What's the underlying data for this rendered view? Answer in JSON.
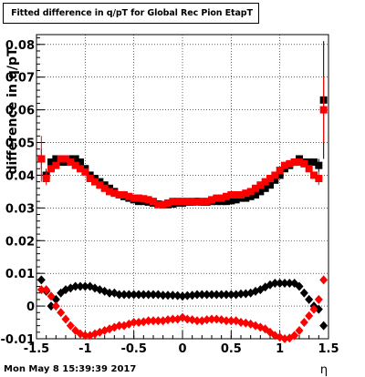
{
  "chart_data": {
    "type": "scatter",
    "title": "Fitted difference in q/pT for Global Rec Pion EtapT",
    "xlabel": "η",
    "ylabel": "difference in q/pT",
    "xlim": [
      -1.5,
      1.5
    ],
    "ylim": [
      -0.01,
      0.083
    ],
    "x_ticks": [
      "-1.5",
      "-1",
      "-0.5",
      "0",
      "0.5",
      "1",
      "1.5"
    ],
    "y_ticks": [
      "-0.01",
      "0",
      "0.01",
      "0.02",
      "0.03",
      "0.04",
      "0.05",
      "0.06",
      "0.07",
      "0.08"
    ],
    "grid": true,
    "timestamp": "Mon May  8 15:39:39 2017",
    "colors": {
      "black": "#000000",
      "red": "#ff0000"
    },
    "x": [
      -1.45,
      -1.4,
      -1.35,
      -1.3,
      -1.25,
      -1.2,
      -1.15,
      -1.1,
      -1.05,
      -1.0,
      -0.95,
      -0.9,
      -0.85,
      -0.8,
      -0.75,
      -0.7,
      -0.65,
      -0.6,
      -0.55,
      -0.5,
      -0.45,
      -0.4,
      -0.35,
      -0.3,
      -0.25,
      -0.2,
      -0.15,
      -0.1,
      -0.05,
      0.0,
      0.05,
      0.1,
      0.15,
      0.2,
      0.25,
      0.3,
      0.35,
      0.4,
      0.45,
      0.5,
      0.55,
      0.6,
      0.65,
      0.7,
      0.75,
      0.8,
      0.85,
      0.9,
      0.95,
      1.0,
      1.05,
      1.1,
      1.15,
      1.2,
      1.25,
      1.3,
      1.35,
      1.4,
      1.45
    ],
    "series": [
      {
        "marker": "square",
        "color": "#000000",
        "values": [
          0.045,
          0.04,
          0.044,
          0.045,
          0.044,
          0.044,
          0.045,
          0.045,
          0.044,
          0.042,
          0.04,
          0.039,
          0.038,
          0.037,
          0.036,
          0.035,
          0.034,
          0.0335,
          0.033,
          0.0325,
          0.032,
          0.032,
          0.0318,
          0.0315,
          0.0312,
          0.031,
          0.031,
          0.0312,
          0.0315,
          0.0315,
          0.0318,
          0.0318,
          0.032,
          0.0318,
          0.0318,
          0.032,
          0.032,
          0.032,
          0.032,
          0.0322,
          0.0325,
          0.033,
          0.033,
          0.0335,
          0.034,
          0.035,
          0.036,
          0.037,
          0.0385,
          0.04,
          0.042,
          0.043,
          0.044,
          0.045,
          0.044,
          0.044,
          0.044,
          0.043,
          0.063
        ],
        "errors": [
          0.003,
          0.002,
          0.001,
          0.001,
          0.001,
          0.001,
          0.0008,
          0.0008,
          0.0007,
          0.0006,
          0.0006,
          0.0005,
          0.0005,
          0.0005,
          0.0005,
          0.0005,
          0.0004,
          0.0004,
          0.0004,
          0.0004,
          0.0004,
          0.0004,
          0.0004,
          0.0004,
          0.0004,
          0.0004,
          0.0004,
          0.0004,
          0.0004,
          0.0004,
          0.0004,
          0.0004,
          0.0004,
          0.0004,
          0.0004,
          0.0004,
          0.0004,
          0.0004,
          0.0004,
          0.0004,
          0.0004,
          0.0004,
          0.0004,
          0.0004,
          0.0004,
          0.0005,
          0.0005,
          0.0005,
          0.0005,
          0.0006,
          0.0006,
          0.0007,
          0.0008,
          0.0008,
          0.001,
          0.001,
          0.001,
          0.002,
          0.018
        ]
      },
      {
        "marker": "square",
        "color": "#ff0000",
        "values": [
          0.045,
          0.039,
          0.042,
          0.043,
          0.045,
          0.045,
          0.044,
          0.043,
          0.042,
          0.041,
          0.039,
          0.038,
          0.037,
          0.036,
          0.035,
          0.0345,
          0.034,
          0.034,
          0.0335,
          0.033,
          0.033,
          0.0328,
          0.0325,
          0.032,
          0.031,
          0.031,
          0.0315,
          0.032,
          0.032,
          0.032,
          0.032,
          0.032,
          0.0318,
          0.032,
          0.032,
          0.0325,
          0.033,
          0.033,
          0.0335,
          0.034,
          0.034,
          0.034,
          0.0345,
          0.035,
          0.036,
          0.037,
          0.038,
          0.039,
          0.04,
          0.0415,
          0.043,
          0.0435,
          0.044,
          0.044,
          0.0435,
          0.042,
          0.04,
          0.039,
          0.06
        ],
        "errors": [
          0.007,
          0.002,
          0.001,
          0.001,
          0.001,
          0.001,
          0.0008,
          0.0008,
          0.0007,
          0.0006,
          0.0006,
          0.0005,
          0.0005,
          0.0005,
          0.0005,
          0.0005,
          0.0004,
          0.0004,
          0.0004,
          0.0004,
          0.0004,
          0.0004,
          0.0004,
          0.0004,
          0.0004,
          0.0004,
          0.0004,
          0.0004,
          0.0004,
          0.0004,
          0.0004,
          0.0004,
          0.0004,
          0.0004,
          0.0004,
          0.0004,
          0.0004,
          0.0004,
          0.0004,
          0.0004,
          0.0004,
          0.0004,
          0.0004,
          0.0004,
          0.0004,
          0.0005,
          0.0005,
          0.0005,
          0.0005,
          0.0006,
          0.0006,
          0.0007,
          0.0008,
          0.0008,
          0.001,
          0.001,
          0.001,
          0.002,
          0.01
        ]
      },
      {
        "marker": "diamond",
        "color": "#000000",
        "values": [
          0.008,
          0.0045,
          0.0,
          0.002,
          0.004,
          0.005,
          0.0055,
          0.006,
          0.006,
          0.006,
          0.006,
          0.0055,
          0.005,
          0.0045,
          0.004,
          0.004,
          0.0035,
          0.0035,
          0.0035,
          0.0035,
          0.0035,
          0.0035,
          0.0035,
          0.0035,
          0.0035,
          0.0033,
          0.0033,
          0.0033,
          0.0032,
          0.003,
          0.0032,
          0.0033,
          0.0035,
          0.0035,
          0.0035,
          0.0035,
          0.0035,
          0.0035,
          0.0035,
          0.0035,
          0.0035,
          0.0037,
          0.0038,
          0.004,
          0.0045,
          0.005,
          0.0058,
          0.0065,
          0.007,
          0.007,
          0.007,
          0.007,
          0.007,
          0.006,
          0.004,
          0.002,
          0.0,
          -0.001,
          -0.006
        ],
        "errors": [
          0.001,
          0.0006,
          0.0005,
          0.0004,
          0.0003,
          0.0003,
          0.0003,
          0.0003,
          0.0003,
          0.0003,
          0.0002,
          0.0002,
          0.0002,
          0.0002,
          0.0002,
          0.0002,
          0.0002,
          0.0002,
          0.0002,
          0.0002,
          0.0002,
          0.0002,
          0.0002,
          0.0002,
          0.0002,
          0.0002,
          0.0002,
          0.0002,
          0.0002,
          0.0002,
          0.0002,
          0.0002,
          0.0002,
          0.0002,
          0.0002,
          0.0002,
          0.0002,
          0.0002,
          0.0002,
          0.0002,
          0.0002,
          0.0002,
          0.0002,
          0.0002,
          0.0002,
          0.0002,
          0.0002,
          0.0002,
          0.0002,
          0.0003,
          0.0003,
          0.0003,
          0.0003,
          0.0003,
          0.0003,
          0.0004,
          0.0005,
          0.0006,
          0.001
        ]
      },
      {
        "marker": "diamond",
        "color": "#ff0000",
        "values": [
          0.005,
          0.005,
          0.003,
          0.0,
          -0.002,
          -0.004,
          -0.006,
          -0.0075,
          -0.0085,
          -0.009,
          -0.009,
          -0.0085,
          -0.008,
          -0.0075,
          -0.007,
          -0.0065,
          -0.006,
          -0.006,
          -0.0055,
          -0.005,
          -0.005,
          -0.0048,
          -0.0045,
          -0.0045,
          -0.0045,
          -0.0045,
          -0.0042,
          -0.004,
          -0.004,
          -0.0035,
          -0.004,
          -0.0042,
          -0.0045,
          -0.0045,
          -0.0042,
          -0.004,
          -0.004,
          -0.0042,
          -0.0045,
          -0.0045,
          -0.0045,
          -0.005,
          -0.0052,
          -0.0055,
          -0.006,
          -0.0065,
          -0.007,
          -0.008,
          -0.009,
          -0.0095,
          -0.01,
          -0.0098,
          -0.009,
          -0.0075,
          -0.005,
          -0.003,
          -0.001,
          0.002,
          0.008
        ],
        "errors": [
          0.001,
          0.0006,
          0.0005,
          0.0004,
          0.0003,
          0.0003,
          0.0003,
          0.0003,
          0.0003,
          0.0003,
          0.0002,
          0.0002,
          0.0002,
          0.0002,
          0.0002,
          0.0002,
          0.0002,
          0.0002,
          0.0002,
          0.0002,
          0.0002,
          0.0002,
          0.0002,
          0.0002,
          0.0002,
          0.0002,
          0.0002,
          0.0002,
          0.0002,
          0.0002,
          0.0002,
          0.0002,
          0.0002,
          0.0002,
          0.0002,
          0.0002,
          0.0002,
          0.0002,
          0.0002,
          0.0002,
          0.0002,
          0.0002,
          0.0002,
          0.0002,
          0.0002,
          0.0002,
          0.0002,
          0.0002,
          0.0002,
          0.0003,
          0.0003,
          0.0003,
          0.0003,
          0.0003,
          0.0003,
          0.0004,
          0.0005,
          0.0006,
          0.001
        ]
      }
    ]
  }
}
